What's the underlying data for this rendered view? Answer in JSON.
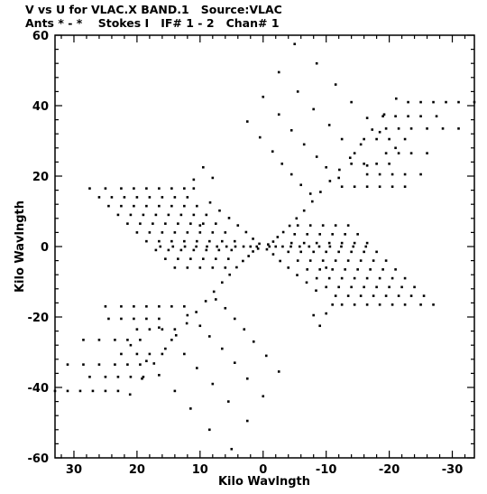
{
  "header": {
    "line1": "V vs U for VLAC.X BAND.1   Source:VLAC",
    "line2": "Ants * - *    Stokes I   IF# 1 - 2   Chan# 1"
  },
  "chart_data": {
    "type": "scatter",
    "title": "V vs U for VLAC.X BAND.1   Source:VLAC",
    "subtitle": "Ants * - *    Stokes I   IF# 1 - 2   Chan# 1",
    "xlabel": "Kilo Wavlngth",
    "ylabel": "Kilo Wavlngth",
    "xlim": [
      33,
      -33.5
    ],
    "ylim": [
      -60,
      60
    ],
    "x_reversed": true,
    "grid": false,
    "legend": "none",
    "x_ticks": [
      30,
      20,
      10,
      0,
      -10,
      -20,
      -30
    ],
    "x_tick_labels": [
      "30",
      "20",
      "10",
      "0",
      "-10",
      "-20",
      "-30"
    ],
    "y_ticks": [
      60,
      40,
      20,
      0,
      -20,
      -40,
      -60
    ],
    "y_tick_labels": [
      "60",
      "40",
      "20",
      "0",
      "-20",
      "-40",
      "-60"
    ],
    "points": [
      [
        -0.6,
        -0.8
      ],
      [
        -1.6,
        -2.2
      ],
      [
        -2.7,
        -4.1
      ],
      [
        -4.0,
        -6.0
      ],
      [
        -5.4,
        -8.1
      ],
      [
        -6.9,
        -10.2
      ],
      [
        -8.4,
        -12.5
      ],
      [
        0.6,
        0.8
      ],
      [
        1.6,
        2.2
      ],
      [
        2.7,
        4.1
      ],
      [
        4.0,
        6.0
      ],
      [
        5.4,
        8.1
      ],
      [
        6.9,
        10.2
      ],
      [
        8.4,
        12.5
      ],
      [
        -0.8,
        0.6
      ],
      [
        -1.6,
        1.4
      ],
      [
        -2.3,
        2.7
      ],
      [
        -3.2,
        4.1
      ],
      [
        -4.2,
        5.9
      ],
      [
        -5.3,
        8.0
      ],
      [
        -6.5,
        10.2
      ],
      [
        -7.8,
        12.8
      ],
      [
        -9.1,
        15.5
      ],
      [
        -10.6,
        18.6
      ],
      [
        -12.1,
        21.8
      ],
      [
        -13.8,
        25.2
      ],
      [
        -15.5,
        29.0
      ],
      [
        -17.3,
        33.2
      ],
      [
        -19.2,
        37.5
      ],
      [
        -21.1,
        42.0
      ],
      [
        0.8,
        -0.6
      ],
      [
        1.6,
        -1.4
      ],
      [
        2.3,
        -2.7
      ],
      [
        3.2,
        -4.1
      ],
      [
        4.2,
        -5.9
      ],
      [
        5.3,
        -8.0
      ],
      [
        6.5,
        -10.2
      ],
      [
        7.8,
        -12.8
      ],
      [
        9.1,
        -15.5
      ],
      [
        10.6,
        -18.6
      ],
      [
        12.1,
        -21.8
      ],
      [
        13.8,
        -25.2
      ],
      [
        15.5,
        -29.0
      ],
      [
        17.3,
        -33.2
      ],
      [
        19.2,
        -37.5
      ],
      [
        21.1,
        -42.0
      ],
      [
        -1.0,
        0.0
      ],
      [
        -2.0,
        0.0
      ],
      [
        -3.1,
        0.0
      ],
      [
        -4.4,
        0.0
      ],
      [
        -5.8,
        0.0
      ],
      [
        -7.3,
        0.0
      ],
      [
        -8.9,
        0.0
      ],
      [
        -10.6,
        0.0
      ],
      [
        -12.4,
        0.0
      ],
      [
        -14.3,
        0.0
      ],
      [
        -16.3,
        0.0
      ],
      [
        1.0,
        0.0
      ],
      [
        2.0,
        0.0
      ],
      [
        3.1,
        0.0
      ],
      [
        4.4,
        0.0
      ],
      [
        5.8,
        0.0
      ],
      [
        7.3,
        0.0
      ],
      [
        8.9,
        0.0
      ],
      [
        10.6,
        0.0
      ],
      [
        12.4,
        0.0
      ],
      [
        14.3,
        0.0
      ],
      [
        16.3,
        0.0
      ],
      [
        -5.0,
        57.5
      ],
      [
        -8.5,
        52.0
      ],
      [
        -11.5,
        46.0
      ],
      [
        -14.0,
        41.0
      ],
      [
        -16.5,
        36.5
      ],
      [
        -18.5,
        32.5
      ],
      [
        -21.0,
        28.0
      ],
      [
        -2.5,
        49.5
      ],
      [
        -5.5,
        44.0
      ],
      [
        -8.0,
        39.0
      ],
      [
        -10.5,
        34.5
      ],
      [
        -12.5,
        30.5
      ],
      [
        -14.5,
        26.5
      ],
      [
        -16.5,
        23.0
      ],
      [
        0.0,
        42.5
      ],
      [
        -2.5,
        37.5
      ],
      [
        -4.5,
        33.0
      ],
      [
        -6.5,
        29.0
      ],
      [
        -8.5,
        25.5
      ],
      [
        -10.0,
        22.5
      ],
      [
        -12.0,
        19.5
      ],
      [
        2.5,
        35.5
      ],
      [
        0.5,
        31.0
      ],
      [
        -1.5,
        27.0
      ],
      [
        -3.0,
        23.5
      ],
      [
        -4.5,
        20.5
      ],
      [
        -6.0,
        17.5
      ],
      [
        -7.5,
        15.0
      ],
      [
        -23.0,
        41.0
      ],
      [
        -25.0,
        41.0
      ],
      [
        -27.0,
        41.0
      ],
      [
        -29.0,
        41.0
      ],
      [
        -31.0,
        41.0
      ],
      [
        -33.5,
        41.0
      ],
      [
        -19.0,
        37.0
      ],
      [
        -21.0,
        37.0
      ],
      [
        -23.0,
        37.0
      ],
      [
        -25.0,
        37.0
      ],
      [
        -27.5,
        37.0
      ],
      [
        -19.5,
        33.5
      ],
      [
        -21.5,
        33.5
      ],
      [
        -23.5,
        33.5
      ],
      [
        -26.0,
        33.5
      ],
      [
        -28.5,
        33.5
      ],
      [
        -31.0,
        33.5
      ],
      [
        -16.0,
        30.5
      ],
      [
        -18.0,
        30.5
      ],
      [
        -20.0,
        30.5
      ],
      [
        -22.5,
        30.5
      ],
      [
        -19.5,
        26.5
      ],
      [
        -21.5,
        26.5
      ],
      [
        -23.5,
        26.5
      ],
      [
        -26.0,
        26.5
      ],
      [
        -14.0,
        23.5
      ],
      [
        -16.0,
        23.5
      ],
      [
        -18.0,
        23.5
      ],
      [
        -20.0,
        23.5
      ],
      [
        -16.5,
        20.5
      ],
      [
        -18.5,
        20.5
      ],
      [
        -20.5,
        20.5
      ],
      [
        -22.5,
        20.5
      ],
      [
        -25.0,
        20.5
      ],
      [
        -12.5,
        17.0
      ],
      [
        -14.5,
        17.0
      ],
      [
        -16.5,
        17.0
      ],
      [
        -18.5,
        17.0
      ],
      [
        -20.5,
        17.0
      ],
      [
        -22.5,
        17.0
      ],
      [
        5.0,
        -57.5
      ],
      [
        8.5,
        -52.0
      ],
      [
        11.5,
        -46.0
      ],
      [
        14.0,
        -41.0
      ],
      [
        16.5,
        -36.5
      ],
      [
        18.5,
        -32.5
      ],
      [
        21.0,
        -28.0
      ],
      [
        2.5,
        -49.5
      ],
      [
        5.5,
        -44.0
      ],
      [
        8.0,
        -39.0
      ],
      [
        10.5,
        -34.5
      ],
      [
        12.5,
        -30.5
      ],
      [
        14.5,
        -26.5
      ],
      [
        16.5,
        -23.0
      ],
      [
        0.0,
        -42.5
      ],
      [
        2.5,
        -37.5
      ],
      [
        4.5,
        -33.0
      ],
      [
        6.5,
        -29.0
      ],
      [
        8.5,
        -25.5
      ],
      [
        10.0,
        -22.5
      ],
      [
        12.0,
        -19.5
      ],
      [
        -2.5,
        -35.5
      ],
      [
        -0.5,
        -31.0
      ],
      [
        1.5,
        -27.0
      ],
      [
        3.0,
        -23.5
      ],
      [
        4.5,
        -20.5
      ],
      [
        6.0,
        -17.5
      ],
      [
        7.5,
        -15.0
      ],
      [
        23.0,
        -41.0
      ],
      [
        25.0,
        -41.0
      ],
      [
        27.0,
        -41.0
      ],
      [
        29.0,
        -41.0
      ],
      [
        31.0,
        -41.0
      ],
      [
        33.0,
        -41.0
      ],
      [
        19.0,
        -37.0
      ],
      [
        21.0,
        -37.0
      ],
      [
        23.0,
        -37.0
      ],
      [
        25.0,
        -37.0
      ],
      [
        27.5,
        -37.0
      ],
      [
        19.5,
        -33.5
      ],
      [
        21.5,
        -33.5
      ],
      [
        23.5,
        -33.5
      ],
      [
        26.0,
        -33.5
      ],
      [
        28.5,
        -33.5
      ],
      [
        31.0,
        -33.5
      ],
      [
        16.0,
        -30.5
      ],
      [
        18.0,
        -30.5
      ],
      [
        20.0,
        -30.5
      ],
      [
        22.5,
        -30.5
      ],
      [
        19.5,
        -26.5
      ],
      [
        21.5,
        -26.5
      ],
      [
        23.5,
        -26.5
      ],
      [
        26.0,
        -26.5
      ],
      [
        28.5,
        -26.5
      ],
      [
        14.0,
        -23.5
      ],
      [
        16.0,
        -23.5
      ],
      [
        18.0,
        -23.5
      ],
      [
        20.0,
        -23.5
      ],
      [
        16.5,
        -20.5
      ],
      [
        18.5,
        -20.5
      ],
      [
        20.5,
        -20.5
      ],
      [
        22.5,
        -20.5
      ],
      [
        24.5,
        -20.5
      ],
      [
        12.5,
        -17.0
      ],
      [
        14.5,
        -17.0
      ],
      [
        16.5,
        -17.0
      ],
      [
        18.5,
        -17.0
      ],
      [
        20.5,
        -17.0
      ],
      [
        22.5,
        -17.0
      ],
      [
        25.0,
        -17.0
      ],
      [
        27.5,
        16.5
      ],
      [
        25.0,
        16.5
      ],
      [
        22.5,
        16.5
      ],
      [
        20.5,
        16.5
      ],
      [
        18.5,
        16.5
      ],
      [
        16.5,
        16.5
      ],
      [
        14.5,
        16.5
      ],
      [
        12.5,
        16.5
      ],
      [
        11.0,
        16.5
      ],
      [
        26.0,
        14.0
      ],
      [
        24.0,
        14.0
      ],
      [
        22.0,
        14.0
      ],
      [
        20.0,
        14.0
      ],
      [
        18.0,
        14.0
      ],
      [
        16.0,
        14.0
      ],
      [
        14.0,
        14.0
      ],
      [
        12.0,
        14.0
      ],
      [
        24.5,
        11.5
      ],
      [
        22.5,
        11.5
      ],
      [
        20.5,
        11.5
      ],
      [
        18.5,
        11.5
      ],
      [
        16.5,
        11.5
      ],
      [
        14.5,
        11.5
      ],
      [
        12.5,
        11.5
      ],
      [
        10.5,
        11.5
      ],
      [
        23.0,
        9.0
      ],
      [
        21.0,
        9.0
      ],
      [
        19.0,
        9.0
      ],
      [
        17.0,
        9.0
      ],
      [
        15.0,
        9.0
      ],
      [
        13.0,
        9.0
      ],
      [
        11.0,
        9.0
      ],
      [
        9.0,
        9.0
      ],
      [
        21.5,
        6.5
      ],
      [
        19.5,
        6.5
      ],
      [
        17.5,
        6.5
      ],
      [
        15.5,
        6.5
      ],
      [
        13.5,
        6.5
      ],
      [
        11.5,
        6.5
      ],
      [
        9.5,
        6.5
      ],
      [
        7.5,
        6.5
      ],
      [
        20.0,
        4.0
      ],
      [
        18.0,
        4.0
      ],
      [
        16.0,
        4.0
      ],
      [
        14.0,
        4.0
      ],
      [
        12.0,
        4.0
      ],
      [
        10.0,
        4.0
      ],
      [
        8.0,
        4.0
      ],
      [
        6.0,
        4.0
      ],
      [
        18.5,
        1.5
      ],
      [
        16.5,
        1.5
      ],
      [
        14.5,
        1.5
      ],
      [
        12.5,
        1.5
      ],
      [
        10.5,
        1.5
      ],
      [
        8.5,
        1.5
      ],
      [
        6.5,
        1.5
      ],
      [
        4.5,
        1.5
      ],
      [
        17.0,
        -1.0
      ],
      [
        15.0,
        -1.0
      ],
      [
        13.0,
        -1.0
      ],
      [
        11.0,
        -1.0
      ],
      [
        9.0,
        -1.0
      ],
      [
        7.0,
        -1.0
      ],
      [
        5.0,
        -1.0
      ],
      [
        15.5,
        -3.5
      ],
      [
        13.5,
        -3.5
      ],
      [
        11.5,
        -3.5
      ],
      [
        9.5,
        -3.5
      ],
      [
        7.5,
        -3.5
      ],
      [
        5.5,
        -3.5
      ],
      [
        14.0,
        -6.0
      ],
      [
        12.0,
        -6.0
      ],
      [
        10.0,
        -6.0
      ],
      [
        8.0,
        -6.0
      ],
      [
        6.0,
        -6.0
      ],
      [
        11.0,
        19.0
      ],
      [
        9.5,
        22.5
      ],
      [
        8.0,
        19.5
      ],
      [
        10.0,
        6.0
      ],
      [
        -27.0,
        -16.5
      ],
      [
        -25.0,
        -16.5
      ],
      [
        -22.5,
        -16.5
      ],
      [
        -20.5,
        -16.5
      ],
      [
        -18.5,
        -16.5
      ],
      [
        -16.5,
        -16.5
      ],
      [
        -14.5,
        -16.5
      ],
      [
        -12.5,
        -16.5
      ],
      [
        -11.0,
        -16.5
      ],
      [
        -25.5,
        -14.0
      ],
      [
        -23.5,
        -14.0
      ],
      [
        -21.5,
        -14.0
      ],
      [
        -19.5,
        -14.0
      ],
      [
        -17.5,
        -14.0
      ],
      [
        -15.5,
        -14.0
      ],
      [
        -13.5,
        -14.0
      ],
      [
        -11.5,
        -14.0
      ],
      [
        -24.0,
        -11.5
      ],
      [
        -22.0,
        -11.5
      ],
      [
        -20.0,
        -11.5
      ],
      [
        -18.0,
        -11.5
      ],
      [
        -16.0,
        -11.5
      ],
      [
        -14.0,
        -11.5
      ],
      [
        -12.0,
        -11.5
      ],
      [
        -10.0,
        -11.5
      ],
      [
        -22.5,
        -9.0
      ],
      [
        -20.5,
        -9.0
      ],
      [
        -18.5,
        -9.0
      ],
      [
        -16.5,
        -9.0
      ],
      [
        -14.5,
        -9.0
      ],
      [
        -12.5,
        -9.0
      ],
      [
        -10.5,
        -9.0
      ],
      [
        -8.5,
        -9.0
      ],
      [
        -21.0,
        -6.5
      ],
      [
        -19.0,
        -6.5
      ],
      [
        -17.0,
        -6.5
      ],
      [
        -15.0,
        -6.5
      ],
      [
        -13.0,
        -6.5
      ],
      [
        -11.0,
        -6.5
      ],
      [
        -9.0,
        -6.5
      ],
      [
        -7.0,
        -6.5
      ],
      [
        -19.5,
        -4.0
      ],
      [
        -17.5,
        -4.0
      ],
      [
        -15.5,
        -4.0
      ],
      [
        -13.5,
        -4.0
      ],
      [
        -11.5,
        -4.0
      ],
      [
        -9.5,
        -4.0
      ],
      [
        -7.5,
        -4.0
      ],
      [
        -5.5,
        -4.0
      ],
      [
        -18.0,
        -1.5
      ],
      [
        -16.0,
        -1.5
      ],
      [
        -14.0,
        -1.5
      ],
      [
        -12.0,
        -1.5
      ],
      [
        -10.0,
        -1.5
      ],
      [
        -8.0,
        -1.5
      ],
      [
        -6.0,
        -1.5
      ],
      [
        -4.0,
        -1.5
      ],
      [
        -16.5,
        1.0
      ],
      [
        -14.5,
        1.0
      ],
      [
        -12.5,
        1.0
      ],
      [
        -10.5,
        1.0
      ],
      [
        -8.5,
        1.0
      ],
      [
        -6.5,
        1.0
      ],
      [
        -4.5,
        1.0
      ],
      [
        -15.0,
        3.5
      ],
      [
        -13.0,
        3.5
      ],
      [
        -11.0,
        3.5
      ],
      [
        -9.0,
        3.5
      ],
      [
        -7.0,
        3.5
      ],
      [
        -5.0,
        3.5
      ],
      [
        -13.5,
        6.0
      ],
      [
        -11.5,
        6.0
      ],
      [
        -9.5,
        6.0
      ],
      [
        -7.5,
        6.0
      ],
      [
        -5.5,
        6.0
      ],
      [
        -10.0,
        -19.0
      ],
      [
        -9.0,
        -22.5
      ],
      [
        -8.0,
        -19.5
      ],
      [
        -10.0,
        -6.0
      ]
    ]
  }
}
